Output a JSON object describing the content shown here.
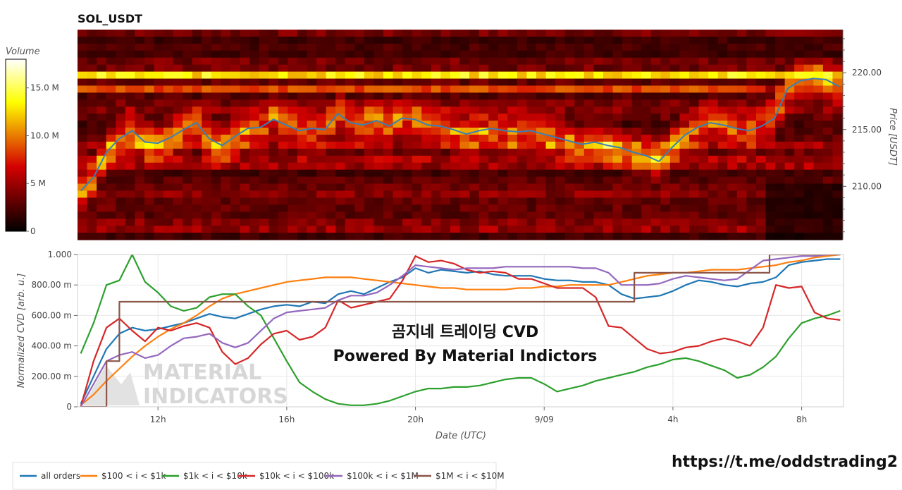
{
  "title": "SOL_USDT",
  "colorbar": {
    "label": "Volume",
    "ticks": [
      "0",
      "5 M",
      "10.0 M",
      "15.0 M"
    ],
    "tick_values": [
      0,
      5,
      10,
      15
    ],
    "max": 18
  },
  "overlay": {
    "line1": "곰지네 트레이딩 CVD",
    "line2": "Powered By Material Indictors"
  },
  "watermark": {
    "line1": "MATERIAL",
    "line2": "INDICATORS"
  },
  "url": "https://t.me/oddstrading2",
  "colors": {
    "all_orders": "#1f77b4",
    "100_1k": "#ff7f0e",
    "1k_10k": "#2ca02c",
    "10k_100k": "#d62728",
    "100k_1M": "#9467bd",
    "1M_10M": "#8c564b",
    "price_line": "#3a7fb8"
  },
  "chart_data": [
    {
      "type": "heatmap",
      "title": "SOL_USDT",
      "ylabel": "Price [USDT]",
      "ylim": [
        205.3,
        223.8
      ],
      "yticks": [
        "210.00",
        "215.00",
        "220.00"
      ],
      "ytick_values": [
        210,
        215,
        220
      ],
      "colorbar_label": "Volume",
      "price_series": {
        "x": [
          9.6,
          10.0,
          10.4,
          10.8,
          11.2,
          11.6,
          12.0,
          12.4,
          12.8,
          13.2,
          13.6,
          14.0,
          14.4,
          14.8,
          15.2,
          15.6,
          16.0,
          16.4,
          16.8,
          17.2,
          17.6,
          18.0,
          18.4,
          18.8,
          19.2,
          19.6,
          20.0,
          20.4,
          20.8,
          21.2,
          21.6,
          22.0,
          22.4,
          22.8,
          23.2,
          23.6,
          24.0,
          24.4,
          24.8,
          25.2,
          25.6,
          26.0,
          26.4,
          26.8,
          27.2,
          27.6,
          28.0,
          28.4,
          28.8,
          29.2,
          29.6,
          30.0,
          30.4,
          30.8,
          31.2,
          31.6,
          32.0,
          32.4,
          32.8,
          33.2
        ],
        "y": [
          209.6,
          210.8,
          213.0,
          214.2,
          214.9,
          213.9,
          213.8,
          214.3,
          215.0,
          215.6,
          214.2,
          213.6,
          214.4,
          215.1,
          215.2,
          215.9,
          215.4,
          214.9,
          215.1,
          215.0,
          216.4,
          215.6,
          215.4,
          215.8,
          215.3,
          216.0,
          215.9,
          215.4,
          215.3,
          215.0,
          214.6,
          214.9,
          215.1,
          214.9,
          214.8,
          214.9,
          214.6,
          214.3,
          214.0,
          213.7,
          213.9,
          213.6,
          213.4,
          213.0,
          212.7,
          212.2,
          213.4,
          214.5,
          215.2,
          215.6,
          215.4,
          215.1,
          214.9,
          215.3,
          216.0,
          218.6,
          219.3,
          219.5,
          219.4,
          218.8
        ]
      }
    },
    {
      "type": "line",
      "xlabel": "Date (UTC)",
      "ylabel": "Normalized CVD [arb. u.]",
      "xlim": [
        9.5,
        33.3
      ],
      "ylim": [
        0,
        1
      ],
      "xticks": [
        "12h",
        "16h",
        "20h",
        "9/09",
        "4h",
        "8h"
      ],
      "xtick_values": [
        12,
        16,
        20,
        24,
        28,
        32
      ],
      "yticks": [
        "0",
        "200.00 m",
        "400.00 m",
        "600.00 m",
        "800.00 m",
        "1.000"
      ],
      "ytick_values": [
        0,
        0.2,
        0.4,
        0.6,
        0.8,
        1.0
      ],
      "series": [
        {
          "name": "all orders",
          "x": [
            9.6,
            10.0,
            10.4,
            10.8,
            11.2,
            11.6,
            12.0,
            12.4,
            12.8,
            13.2,
            13.6,
            14.0,
            14.4,
            14.8,
            15.2,
            15.6,
            16.0,
            16.4,
            16.8,
            17.2,
            17.6,
            18.0,
            18.4,
            18.8,
            19.2,
            19.6,
            20.0,
            20.4,
            20.8,
            21.2,
            21.6,
            22.0,
            22.4,
            22.8,
            23.2,
            23.6,
            24.0,
            24.4,
            24.8,
            25.2,
            25.6,
            26.0,
            26.4,
            26.8,
            27.2,
            27.6,
            28.0,
            28.4,
            28.8,
            29.2,
            29.6,
            30.0,
            30.4,
            30.8,
            31.2,
            31.6,
            32.0,
            32.4,
            32.8,
            33.2
          ],
          "y": [
            0.02,
            0.2,
            0.38,
            0.48,
            0.52,
            0.5,
            0.51,
            0.53,
            0.55,
            0.58,
            0.61,
            0.59,
            0.58,
            0.61,
            0.64,
            0.66,
            0.67,
            0.66,
            0.69,
            0.68,
            0.74,
            0.76,
            0.74,
            0.78,
            0.82,
            0.85,
            0.91,
            0.88,
            0.9,
            0.89,
            0.88,
            0.89,
            0.87,
            0.86,
            0.86,
            0.86,
            0.84,
            0.83,
            0.83,
            0.82,
            0.82,
            0.8,
            0.74,
            0.71,
            0.72,
            0.73,
            0.76,
            0.8,
            0.83,
            0.82,
            0.8,
            0.79,
            0.81,
            0.82,
            0.85,
            0.93,
            0.95,
            0.96,
            0.97,
            0.97
          ]
        },
        {
          "name": "$100 < i < $1k",
          "x": [
            9.6,
            10.0,
            10.4,
            10.8,
            11.2,
            11.6,
            12.0,
            12.4,
            12.8,
            13.2,
            13.6,
            14.0,
            14.4,
            14.8,
            15.2,
            15.6,
            16.0,
            16.4,
            16.8,
            17.2,
            17.6,
            18.0,
            18.4,
            18.8,
            19.2,
            19.6,
            20.0,
            20.4,
            20.8,
            21.2,
            21.6,
            22.0,
            22.4,
            22.8,
            23.2,
            23.6,
            24.0,
            24.4,
            24.8,
            25.2,
            25.6,
            26.0,
            26.4,
            26.8,
            27.2,
            27.6,
            28.0,
            28.4,
            28.8,
            29.2,
            29.6,
            30.0,
            30.4,
            30.8,
            31.2,
            31.6,
            32.0,
            32.4,
            32.8,
            33.2
          ],
          "y": [
            0.01,
            0.08,
            0.17,
            0.25,
            0.33,
            0.4,
            0.46,
            0.51,
            0.55,
            0.6,
            0.66,
            0.71,
            0.74,
            0.76,
            0.78,
            0.8,
            0.82,
            0.83,
            0.84,
            0.85,
            0.85,
            0.85,
            0.84,
            0.83,
            0.82,
            0.81,
            0.8,
            0.79,
            0.78,
            0.78,
            0.77,
            0.77,
            0.77,
            0.77,
            0.78,
            0.78,
            0.79,
            0.79,
            0.8,
            0.8,
            0.8,
            0.8,
            0.82,
            0.84,
            0.86,
            0.87,
            0.88,
            0.88,
            0.89,
            0.9,
            0.9,
            0.9,
            0.91,
            0.92,
            0.93,
            0.95,
            0.96,
            0.98,
            0.99,
            1.0
          ]
        },
        {
          "name": "$1k < i < $10k",
          "x": [
            9.6,
            10.0,
            10.4,
            10.8,
            11.2,
            11.6,
            12.0,
            12.4,
            12.8,
            13.2,
            13.6,
            14.0,
            14.4,
            14.8,
            15.2,
            15.6,
            16.0,
            16.4,
            16.8,
            17.2,
            17.6,
            18.0,
            18.4,
            18.8,
            19.2,
            19.6,
            20.0,
            20.4,
            20.8,
            21.2,
            21.6,
            22.0,
            22.4,
            22.8,
            23.2,
            23.6,
            24.0,
            24.4,
            24.8,
            25.2,
            25.6,
            26.0,
            26.4,
            26.8,
            27.2,
            27.6,
            28.0,
            28.4,
            28.8,
            29.2,
            29.6,
            30.0,
            30.4,
            30.8,
            31.2,
            31.6,
            32.0,
            32.4,
            32.8,
            33.2
          ],
          "y": [
            0.35,
            0.55,
            0.8,
            0.83,
            1.0,
            0.82,
            0.75,
            0.66,
            0.63,
            0.65,
            0.72,
            0.74,
            0.74,
            0.66,
            0.6,
            0.45,
            0.3,
            0.16,
            0.1,
            0.05,
            0.02,
            0.01,
            0.01,
            0.02,
            0.04,
            0.07,
            0.1,
            0.12,
            0.12,
            0.13,
            0.13,
            0.14,
            0.16,
            0.18,
            0.19,
            0.19,
            0.15,
            0.1,
            0.12,
            0.14,
            0.17,
            0.19,
            0.21,
            0.23,
            0.26,
            0.28,
            0.31,
            0.32,
            0.3,
            0.27,
            0.24,
            0.19,
            0.21,
            0.26,
            0.33,
            0.45,
            0.55,
            0.58,
            0.6,
            0.63
          ]
        },
        {
          "name": "$10k < i < $100k",
          "x": [
            9.6,
            10.0,
            10.4,
            10.8,
            11.2,
            11.6,
            12.0,
            12.4,
            12.8,
            13.2,
            13.6,
            14.0,
            14.4,
            14.8,
            15.2,
            15.6,
            16.0,
            16.4,
            16.8,
            17.2,
            17.6,
            18.0,
            18.4,
            18.8,
            19.2,
            19.6,
            20.0,
            20.4,
            20.8,
            21.2,
            21.6,
            22.0,
            22.4,
            22.8,
            23.2,
            23.6,
            24.0,
            24.4,
            24.8,
            25.2,
            25.6,
            26.0,
            26.4,
            26.8,
            27.2,
            27.6,
            28.0,
            28.4,
            28.8,
            29.2,
            29.6,
            30.0,
            30.4,
            30.8,
            31.2,
            31.6,
            32.0,
            32.4,
            32.8,
            33.2
          ],
          "y": [
            0.0,
            0.3,
            0.52,
            0.58,
            0.5,
            0.43,
            0.52,
            0.5,
            0.53,
            0.55,
            0.52,
            0.36,
            0.28,
            0.32,
            0.41,
            0.48,
            0.5,
            0.44,
            0.46,
            0.52,
            0.7,
            0.65,
            0.67,
            0.69,
            0.71,
            0.83,
            0.99,
            0.95,
            0.96,
            0.94,
            0.9,
            0.88,
            0.89,
            0.88,
            0.84,
            0.84,
            0.81,
            0.78,
            0.78,
            0.78,
            0.72,
            0.53,
            0.52,
            0.45,
            0.38,
            0.35,
            0.36,
            0.39,
            0.4,
            0.43,
            0.45,
            0.43,
            0.4,
            0.52,
            0.8,
            0.78,
            0.79,
            0.62,
            0.58,
            0.57
          ]
        },
        {
          "name": "$100k < i < $1M",
          "x": [
            9.6,
            10.0,
            10.4,
            10.8,
            11.2,
            11.6,
            12.0,
            12.4,
            12.8,
            13.2,
            13.6,
            14.0,
            14.4,
            14.8,
            15.2,
            15.6,
            16.0,
            16.4,
            16.8,
            17.2,
            17.6,
            18.0,
            18.4,
            18.8,
            19.2,
            19.6,
            20.0,
            20.4,
            20.8,
            21.2,
            21.6,
            22.0,
            22.4,
            22.8,
            23.2,
            23.6,
            24.0,
            24.4,
            24.8,
            25.2,
            25.6,
            26.0,
            26.4,
            26.8,
            27.2,
            27.6,
            28.0,
            28.4,
            28.8,
            29.2,
            29.6,
            30.0,
            30.4,
            30.8,
            31.2,
            31.6,
            32.0,
            32.4,
            32.8,
            33.2
          ],
          "y": [
            0.0,
            0.15,
            0.3,
            0.34,
            0.36,
            0.32,
            0.34,
            0.4,
            0.45,
            0.46,
            0.48,
            0.42,
            0.39,
            0.42,
            0.5,
            0.58,
            0.62,
            0.63,
            0.64,
            0.65,
            0.7,
            0.73,
            0.73,
            0.75,
            0.8,
            0.86,
            0.93,
            0.92,
            0.91,
            0.9,
            0.91,
            0.91,
            0.91,
            0.92,
            0.92,
            0.92,
            0.92,
            0.92,
            0.92,
            0.91,
            0.91,
            0.88,
            0.8,
            0.8,
            0.8,
            0.81,
            0.84,
            0.86,
            0.85,
            0.84,
            0.83,
            0.84,
            0.9,
            0.96,
            0.97,
            0.98,
            0.99,
            0.99,
            1.0,
            1.0
          ]
        },
        {
          "name": "$1M < i < $10M",
          "x": [
            9.6,
            10.4,
            10.401,
            10.8,
            10.801,
            12.0,
            16.0,
            20.0,
            24.0,
            26.2,
            26.8,
            26.801,
            28.0,
            30.0,
            31.0,
            31.001,
            32.0,
            33.2
          ],
          "y": [
            0.0,
            0.0,
            0.3,
            0.3,
            0.69,
            0.69,
            0.69,
            0.69,
            0.69,
            0.69,
            0.69,
            0.88,
            0.88,
            0.88,
            0.88,
            1.0,
            1.0,
            1.0
          ]
        }
      ]
    }
  ]
}
